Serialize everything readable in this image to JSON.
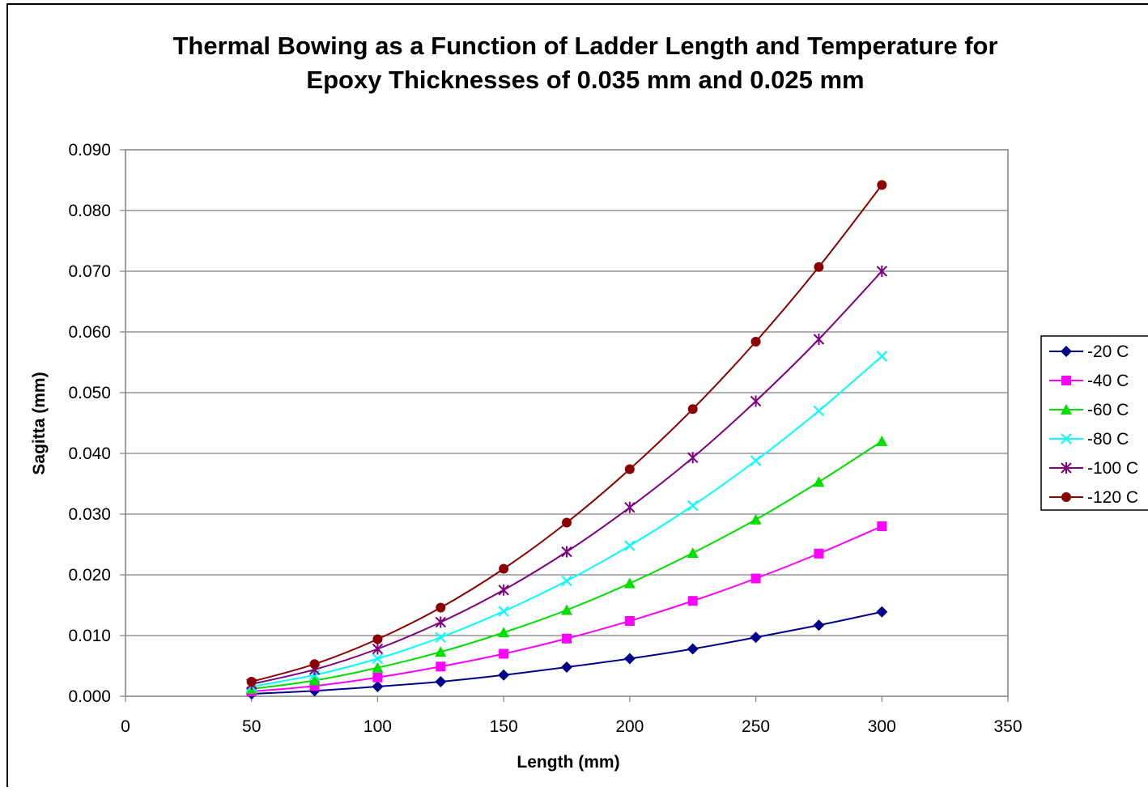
{
  "chart_data": {
    "type": "line",
    "title_lines": [
      "Thermal Bowing as a Function of Ladder Length and Temperature for",
      "Epoxy Thicknesses of 0.035 mm and 0.025 mm"
    ],
    "xlabel": "Length (mm)",
    "ylabel": "Sagitta (mm)",
    "xlim": [
      0,
      350
    ],
    "ylim": [
      0,
      0.09
    ],
    "x_ticks": [
      0,
      50,
      100,
      150,
      200,
      250,
      300,
      350
    ],
    "x_tick_labels": [
      "0",
      "50",
      "100",
      "150",
      "200",
      "250",
      "300",
      "350"
    ],
    "y_ticks": [
      0,
      0.01,
      0.02,
      0.03,
      0.04,
      0.05,
      0.06,
      0.07,
      0.08,
      0.09
    ],
    "y_tick_labels": [
      "0.000",
      "0.010",
      "0.020",
      "0.030",
      "0.040",
      "0.050",
      "0.060",
      "0.070",
      "0.080",
      "0.090"
    ],
    "grid": "horizontal major gridlines",
    "legend_position": "right",
    "x": [
      50,
      75,
      100,
      125,
      150,
      175,
      200,
      225,
      250,
      275,
      300
    ],
    "series": [
      {
        "name": "-20 C",
        "color": "#00008B",
        "marker": "diamond",
        "values": [
          0.0004,
          0.0009,
          0.0016,
          0.0024,
          0.0035,
          0.0048,
          0.0062,
          0.0078,
          0.0097,
          0.0117,
          0.0139
        ]
      },
      {
        "name": "-40 C",
        "color": "#FF00FF",
        "marker": "square",
        "values": [
          0.0008,
          0.0017,
          0.0031,
          0.0049,
          0.007,
          0.0095,
          0.0124,
          0.0157,
          0.0194,
          0.0235,
          0.028
        ]
      },
      {
        "name": "-60 C",
        "color": "#00E000",
        "marker": "triangle",
        "values": [
          0.0012,
          0.0026,
          0.0047,
          0.0073,
          0.0105,
          0.0142,
          0.0186,
          0.0236,
          0.0291,
          0.0353,
          0.042
        ]
      },
      {
        "name": "-80 C",
        "color": "#00FFFF",
        "marker": "x",
        "values": [
          0.0016,
          0.0035,
          0.0062,
          0.0097,
          0.014,
          0.019,
          0.0248,
          0.0314,
          0.0388,
          0.047,
          0.056
        ]
      },
      {
        "name": "-100 C",
        "color": "#800080",
        "marker": "star",
        "values": [
          0.002,
          0.0044,
          0.0078,
          0.0122,
          0.0175,
          0.0238,
          0.0311,
          0.0393,
          0.0486,
          0.0588,
          0.07
        ]
      },
      {
        "name": "-120 C",
        "color": "#8B0000",
        "marker": "circle",
        "values": [
          0.0024,
          0.0053,
          0.0094,
          0.0146,
          0.021,
          0.0286,
          0.0374,
          0.0473,
          0.0584,
          0.0707,
          0.0842
        ]
      }
    ]
  }
}
